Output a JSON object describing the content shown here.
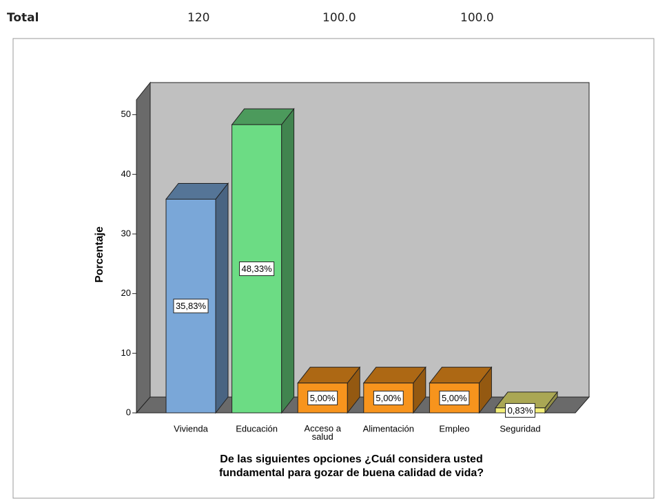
{
  "table": {
    "rows": [
      [
        "Total",
        "120",
        "100.0",
        "100.0"
      ]
    ]
  },
  "chart_data": {
    "type": "bar3d",
    "ylabel": "Porcentaje",
    "xlabel": [
      "De las siguientes opciones ¿Cuál considera usted",
      "fundamental para gozar de buena calidad de vida?"
    ],
    "categories": [
      "Vivienda",
      "Educación",
      "Acceso a salud",
      "Alimentación",
      "Empleo",
      "Seguridad"
    ],
    "values": [
      35.83,
      48.33,
      5,
      5,
      5,
      0.83
    ],
    "value_labels": [
      "35,83%",
      "48,33%",
      "5,00%",
      "5,00%",
      "5,00%",
      "0,83%"
    ],
    "colors": [
      "#7aa7d8",
      "#6cdc84",
      "#f7941d",
      "#f7941d",
      "#f7941d",
      "#f3ee78"
    ],
    "ylim": [
      0,
      52.5
    ],
    "yticks": [
      0,
      10,
      20,
      30,
      40,
      50
    ],
    "grid": false
  }
}
